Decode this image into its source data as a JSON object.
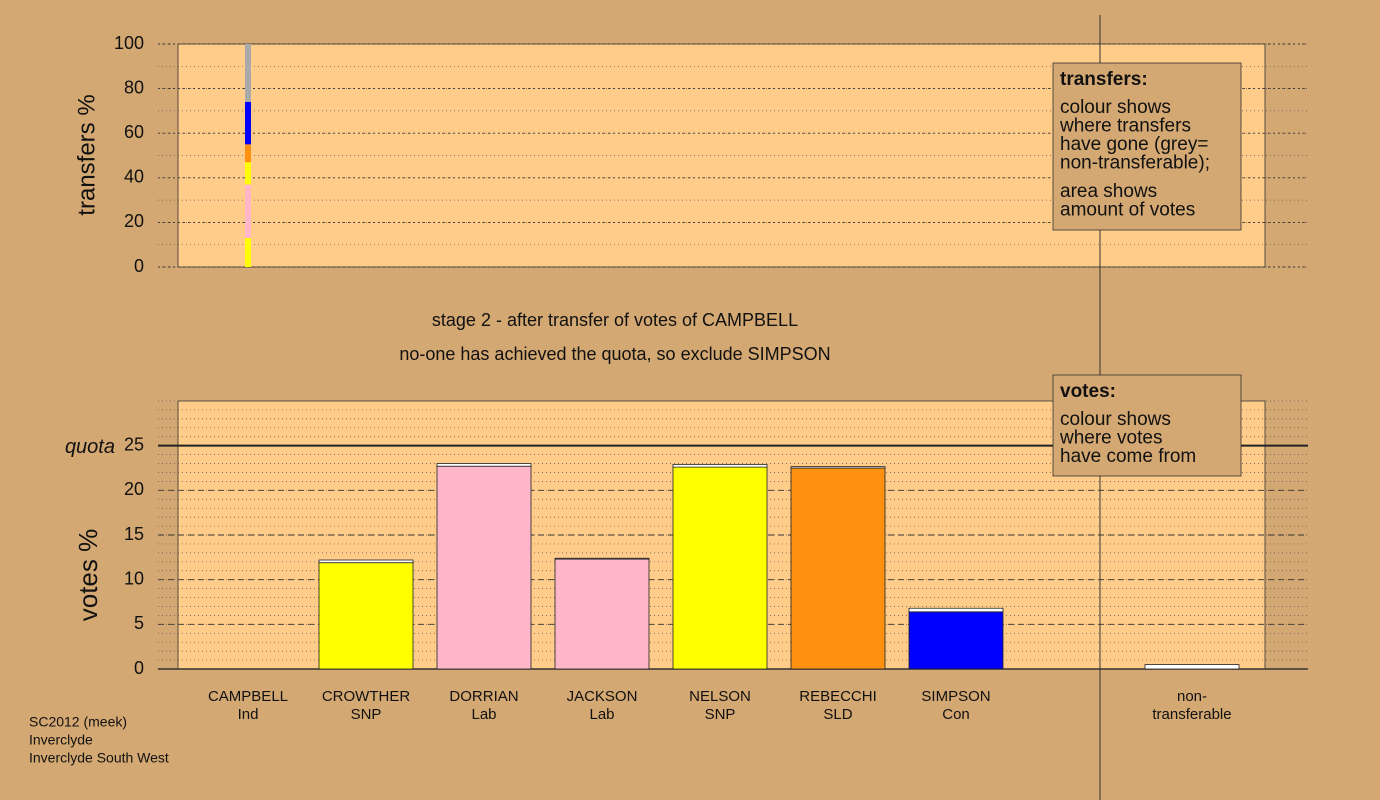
{
  "chart_data": [
    {
      "type": "bar",
      "stacked": true,
      "ylabel": "transfers %",
      "ylim": [
        0,
        100
      ],
      "yticks": [
        0,
        20,
        40,
        60,
        80,
        100
      ],
      "minor_grid_step": 10,
      "series": [
        {
          "color": "#ffff00",
          "values": [
            13
          ]
        },
        {
          "color": "#ffb6c8",
          "values": [
            24
          ]
        },
        {
          "color": "#ffff00",
          "values": [
            10
          ]
        },
        {
          "color": "#ff9010",
          "values": [
            8
          ]
        },
        {
          "color": "#0000ff",
          "values": [
            19
          ]
        },
        {
          "color": "#aaaaaa",
          "values": [
            26
          ]
        }
      ],
      "legend": {
        "title": "transfers:",
        "lines": [
          "colour shows",
          "where transfers",
          "have gone (grey=",
          "non-transferable);",
          "area shows",
          "amount of votes"
        ]
      }
    },
    {
      "type": "bar",
      "stacked": true,
      "ylabel": "votes %",
      "ylim": [
        0,
        30
      ],
      "yticks": [
        0,
        5,
        10,
        15,
        20,
        25
      ],
      "minor_grid_step": 1,
      "quota": {
        "value": 25,
        "label": "quota"
      },
      "categories": [
        [
          "CAMPBELL",
          "Ind"
        ],
        [
          "CROWTHER",
          "SNP"
        ],
        [
          "DORRIAN",
          "Lab"
        ],
        [
          "JACKSON",
          "Lab"
        ],
        [
          "NELSON",
          "SNP"
        ],
        [
          "REBECCHI",
          "SLD"
        ],
        [
          "SIMPSON",
          "Con"
        ],
        null,
        [
          "non-",
          "transferable"
        ]
      ],
      "series": [
        {
          "colors": [
            "#ffffff",
            "#ffff00",
            "#ffb6c8",
            "#ffb6c8",
            "#ffff00",
            "#ff9010",
            "#0000ff",
            null,
            "#ffffff"
          ],
          "values": [
            0,
            11.9,
            22.7,
            12.3,
            22.6,
            22.5,
            6.4,
            null,
            0
          ]
        },
        {
          "color": "#ffffff",
          "values": [
            0,
            0.3,
            0.3,
            0.1,
            0.3,
            0.15,
            0.4,
            null,
            0.5
          ]
        }
      ],
      "legend": {
        "title": "votes:",
        "lines": [
          "colour shows",
          "where votes",
          "have come from"
        ]
      }
    }
  ],
  "stage": [
    "stage 2 - after transfer of votes of CAMPBELL",
    "no-one has achieved the quota, so exclude SIMPSON"
  ],
  "footer": [
    "SC2012 (meek)",
    "Inverclyde",
    "Inverclyde South West"
  ]
}
